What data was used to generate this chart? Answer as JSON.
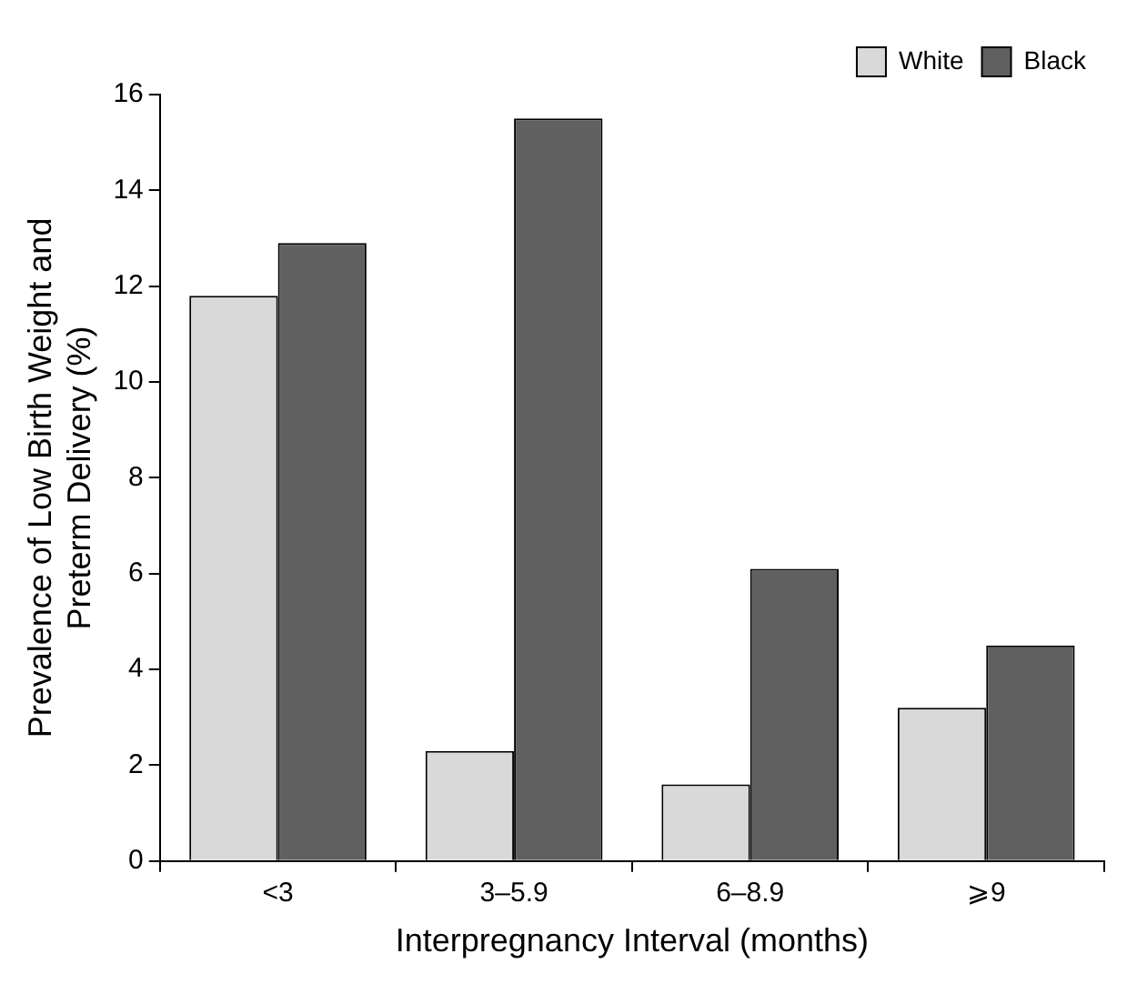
{
  "chart_data": {
    "type": "bar",
    "xlabel": "Interpregnancy Interval (months)",
    "ylabel": "Prevalence of Low Birth Weight and Preterm Delivery (%)",
    "categories": [
      "<3",
      "3–5.9",
      "6–8.9",
      "⩾9"
    ],
    "series": [
      {
        "name": "White",
        "color": "#d9d9d9",
        "values": [
          11.8,
          2.3,
          1.6,
          3.2
        ]
      },
      {
        "name": "Black",
        "color": "#606060",
        "values": [
          12.9,
          15.5,
          6.1,
          4.5
        ]
      }
    ],
    "ylim": [
      0,
      16
    ],
    "yticks": [
      0,
      2,
      4,
      6,
      8,
      10,
      12,
      14,
      16
    ],
    "grid": false,
    "legend": "top right"
  }
}
